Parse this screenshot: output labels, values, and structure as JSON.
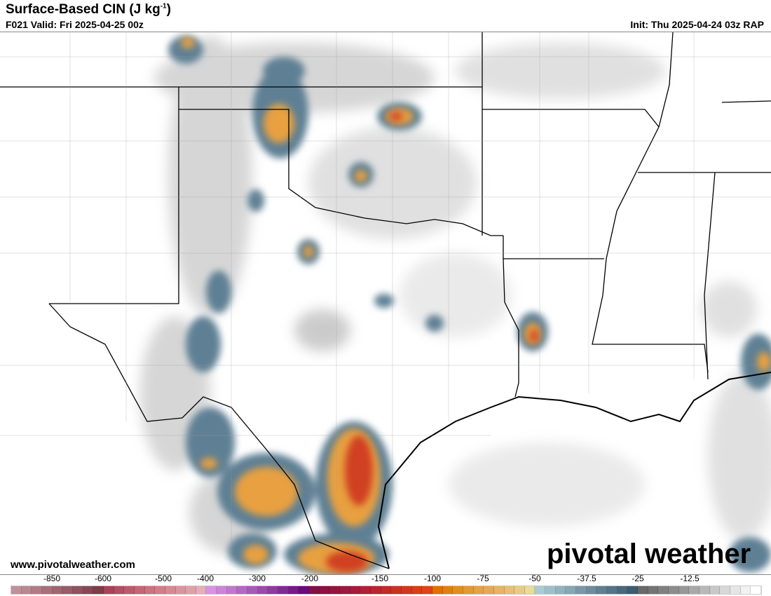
{
  "header": {
    "title": "Surface-Based CIN (J kg",
    "title_unit_sup": "-1",
    "title_close": ")",
    "valid": "F021 Valid: Fri 2025-04-25 00z",
    "init": "Thu 2025-04-24 03z RAP",
    "init_prefix": "Init: "
  },
  "footer": {
    "website": "www.pivotalweather.com",
    "logo_text": "pivotal weather"
  },
  "colorbar": {
    "tick_labels": [
      "-850",
      "-600",
      "-500",
      "-400",
      "-300",
      "-200",
      "-150",
      "-100",
      "-75",
      "-50",
      "-37.5",
      "-25",
      "-12.5"
    ],
    "colors": [
      "#c09098",
      "#b88890",
      "#b07c84",
      "#a87078",
      "#a06670",
      "#985c66",
      "#90525c",
      "#884852",
      "#803c48",
      "#b04058",
      "#b84c62",
      "#c0586c",
      "#c86474",
      "#d07080",
      "#d47c88",
      "#d88892",
      "#dc949c",
      "#e0a0a8",
      "#e4b0b8",
      "#d894e0",
      "#cc84d8",
      "#c078cc",
      "#b468c4",
      "#a858b8",
      "#9c48ac",
      "#9038a4",
      "#842898",
      "#78188c",
      "#6c0880",
      "#880c44",
      "#900e42",
      "#981240",
      "#a0163e",
      "#a81a3c",
      "#b02038",
      "#b82630",
      "#c02c28",
      "#c83220",
      "#d03818",
      "#d83e10",
      "#e04410",
      "#e07000",
      "#e08010",
      "#e48c20",
      "#e89830",
      "#e8a040",
      "#e8a850",
      "#e8b460",
      "#e8c070",
      "#e8cc80",
      "#e8dc98",
      "#a8ccd4",
      "#9cc0c8",
      "#90b4bc",
      "#84a8b4",
      "#7898a8",
      "#6c8c9c",
      "#608090",
      "#547488",
      "#48687c",
      "#3c5c70",
      "#686868",
      "#747474",
      "#808080",
      "#8c8c8c",
      "#989898",
      "#a8a8a8",
      "#b8b8b8",
      "#c8c8c8",
      "#d8d8d8",
      "#e6e6e6",
      "#f2f2f2",
      "#ffffff"
    ]
  }
}
